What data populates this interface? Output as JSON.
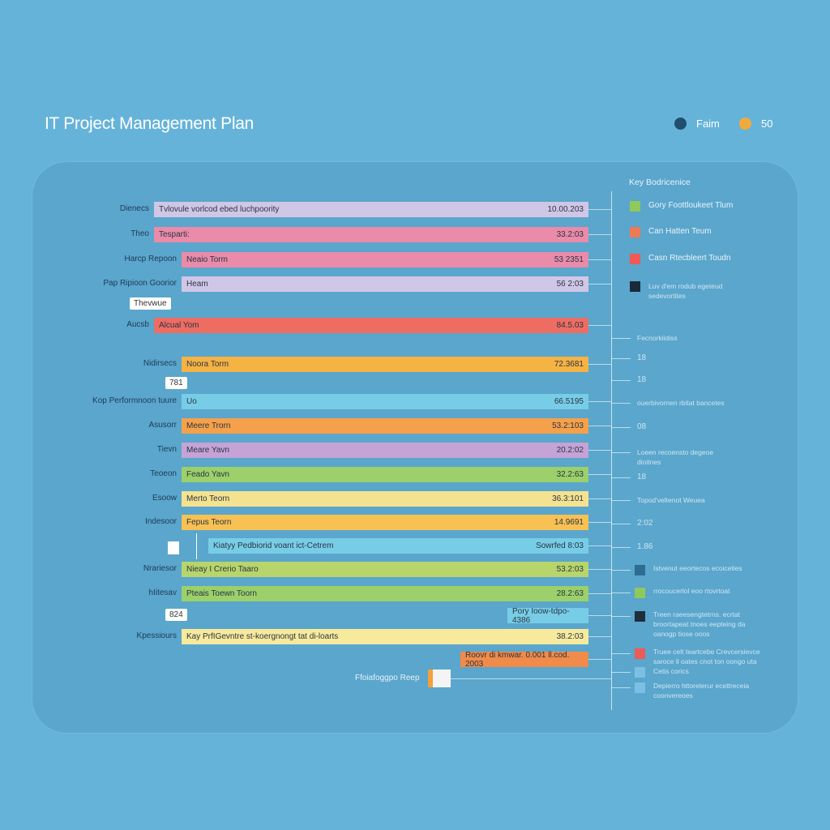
{
  "header": {
    "title": "IT Project Management Plan",
    "legend": [
      {
        "label": "Faim",
        "color": "#1f4e6e"
      },
      {
        "label": "50",
        "color": "#f2a93b"
      }
    ]
  },
  "chart_data": {
    "type": "bar",
    "orientation": "horizontal",
    "title": "IT Project Management Plan",
    "rows": [
      {
        "category": "Dienecs",
        "label": "Tvlovule vorlcod ebed luchpoority",
        "value": "10.00.203",
        "color": "#d0c7e6"
      },
      {
        "category": "Theo",
        "label": "Tesparti:",
        "value": "33.2:03",
        "color": "#e98ba9"
      },
      {
        "category": "Harcp Repoon",
        "label": "Neaio Torm",
        "value": "53 2351",
        "color": "#e98ba9"
      },
      {
        "category": "Pap Ripioon Goorior",
        "label": "Heam",
        "value": "56 2:03",
        "color": "#d0c7e6"
      },
      {
        "category": "Aucsb",
        "label": "Alcual Yom",
        "value": "84.5.03",
        "color": "#ee6d63"
      },
      {
        "category": "Nidirsecs",
        "label": "Noora Torm",
        "value": "72.3681",
        "color": "#f5b344"
      },
      {
        "category": "Kop Performnoon tuure",
        "label": "Uo",
        "value": "66.5195",
        "color": "#78cde6"
      },
      {
        "category": "Asusorr",
        "label": "Meere Trorn",
        "value": "53.2:103",
        "color": "#f5a14b"
      },
      {
        "category": "Tievn",
        "label": "Meare Yavn",
        "value": "20.2:02",
        "color": "#c5a3d6"
      },
      {
        "category": "Teoeon",
        "label": "Feado Yavn",
        "value": "32.2:63",
        "color": "#9bd06a"
      },
      {
        "category": "Esoow",
        "label": "Merto Teorn",
        "value": "36.3:101",
        "color": "#f5e290"
      },
      {
        "category": "Indesoor",
        "label": "Fepus Teorn",
        "value": "14.9691",
        "color": "#f7c153"
      },
      {
        "category": "",
        "label": "Kiatyy Pedbiorid voant ict-Cetrem",
        "value": "Sowrfed 8:03",
        "color": "#78cde6"
      },
      {
        "category": "Nrariesor",
        "label": "Nieay I Crerio Taaro",
        "value": "53.2:03",
        "color": "#b7d56b"
      },
      {
        "category": "hIitesav",
        "label": "Pteais Toewn Toorn",
        "value": "28.2:63",
        "color": "#9bd06a"
      },
      {
        "category": "",
        "label": "Pory Ioow-tdpo-4386",
        "value": "",
        "color": "#78cde6"
      },
      {
        "category": "Kpessiours",
        "label": "Kay PrfIGevntre st-koergnongt tat di-loarts",
        "value": "38.2:03",
        "color": "#f7ea9c"
      },
      {
        "category": "",
        "label": "Roovr di kmwar. 0.001 ll.cod. 2003",
        "value": "",
        "color": "#f08b49"
      }
    ],
    "callouts": [
      "Thevwue",
      "781",
      "824"
    ],
    "footer_label": "Ffoiafoggpo Reep"
  },
  "sidebar": {
    "title": "Key Bodricenice",
    "legend": [
      {
        "label": "Gory Foottloukeet Tlum",
        "color": "#8fc95a"
      },
      {
        "label": "Can Hatten Teum",
        "color": "#ee7a55"
      },
      {
        "label": "Casn Rtecbleert Toudn",
        "color": "#ee5a55"
      },
      {
        "label": "Luv d'em rodub egeteud sedevortites",
        "color": "#1a2a3a"
      }
    ],
    "notes": [
      "Fecnorkiidiss",
      "18",
      "18",
      "ouerbivornen rbitat bancetes",
      "08",
      "Loeen recoensto degeoe dioitnes",
      "18",
      "Topod'veltenot Weuea",
      "2:02",
      "1.86"
    ],
    "legend2": [
      {
        "label": "Istvenut eeortecos ecoiceties",
        "color": "#2f6c91"
      },
      {
        "label": "rrocoucerlol eoo rtovrtoat",
        "color": "#8fc95a"
      },
      {
        "label": "Treen raeesengtetrns. ecrtat broortapeat tnoes eepteing da oanogp tiose ooos",
        "color": "#1e2f3c"
      },
      {
        "label": "Truee celt teartcebe Crevcersievce saroce ll oates cnot ton oongo uta Cetis corics",
        "color": "#ee5a55"
      },
      {
        "label": "",
        "color": "#7bc0e4"
      },
      {
        "label": "Depierro httoreterur ecettreceia coonvereoes",
        "color": "#7bc0e4"
      }
    ]
  }
}
